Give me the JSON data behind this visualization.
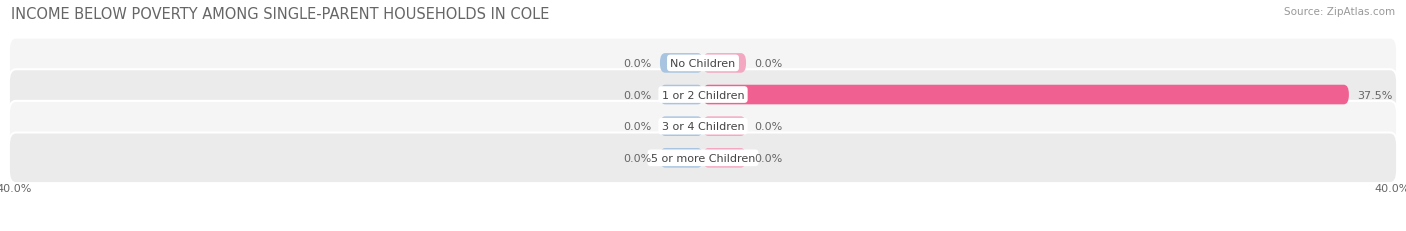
{
  "title": "INCOME BELOW POVERTY AMONG SINGLE-PARENT HOUSEHOLDS IN COLE",
  "source_text": "Source: ZipAtlas.com",
  "categories": [
    "No Children",
    "1 or 2 Children",
    "3 or 4 Children",
    "5 or more Children"
  ],
  "single_father": [
    0.0,
    0.0,
    0.0,
    0.0
  ],
  "single_mother": [
    0.0,
    37.5,
    0.0,
    0.0
  ],
  "max_value": 40.0,
  "father_color": "#a8c4e0",
  "mother_color_light": "#f4a7c0",
  "mother_color_strong": "#f06090",
  "row_bg_odd": "#f5f5f5",
  "row_bg_even": "#ebebeb",
  "title_color": "#666666",
  "source_color": "#999999",
  "value_color": "#666666",
  "cat_label_color": "#444444",
  "title_fontsize": 10.5,
  "source_fontsize": 7.5,
  "value_fontsize": 8,
  "cat_fontsize": 8,
  "legend_fontsize": 8.5,
  "axis_fontsize": 8
}
